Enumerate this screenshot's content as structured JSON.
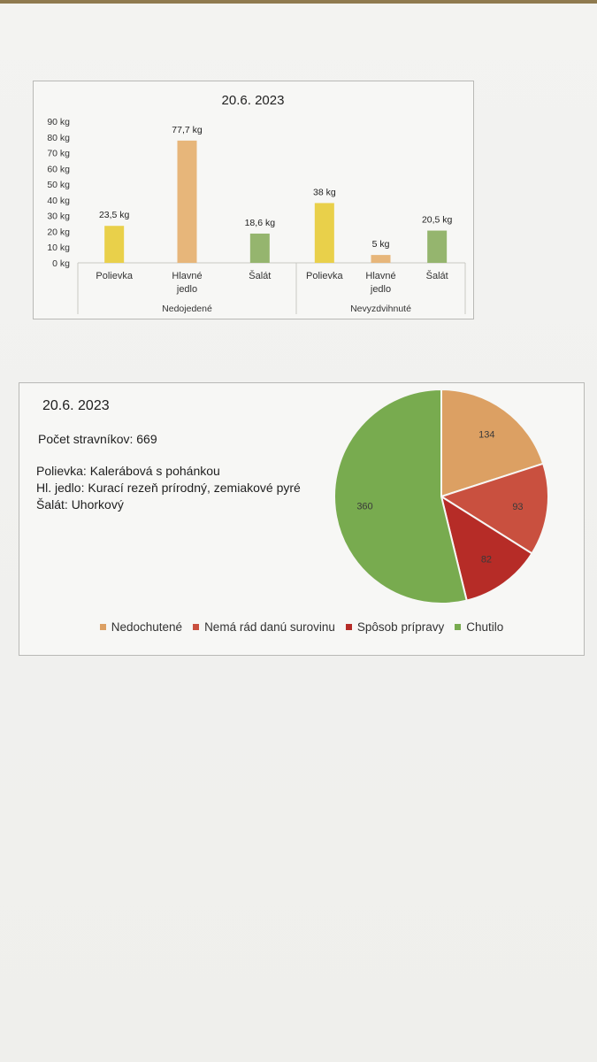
{
  "chart_data": [
    {
      "type": "bar",
      "title": "20.6. 2023",
      "ylim": [
        0,
        90
      ],
      "y_ticks": [
        "0 kg",
        "10 kg",
        "20 kg",
        "30 kg",
        "40 kg",
        "50 kg",
        "60 kg",
        "70 kg",
        "80 kg",
        "90 kg"
      ],
      "groups": [
        "Nedojedené",
        "Nevyzdvihnuté"
      ],
      "categories": [
        "Polievka",
        "Hlavné jedlo",
        "Šalát"
      ],
      "series": [
        {
          "group": "Nedojedené",
          "values": [
            23.5,
            77.7,
            18.6
          ],
          "labels": [
            "23,5 kg",
            "77,7 kg",
            "18,6 kg"
          ]
        },
        {
          "group": "Nevyzdvihnuté",
          "values": [
            38,
            5,
            20.5
          ],
          "labels": [
            "38 kg",
            "5 kg",
            "20,5 kg"
          ]
        }
      ],
      "colors": [
        "#e9d04a",
        "#e7b67a",
        "#95b56e"
      ],
      "grid": false
    },
    {
      "type": "pie",
      "title": "20.6. 2023",
      "categories": [
        "Nedochutené",
        "Nemá rád danú surovinu",
        "Spôsob prípravy",
        "Chutilo"
      ],
      "values": [
        134,
        93,
        82,
        360
      ],
      "colors": [
        "#dca063",
        "#c9503f",
        "#b62c27",
        "#78ab4f"
      ],
      "legend_position": "bottom"
    }
  ],
  "info": {
    "diners": "Počet stravníkov: 669",
    "soup": "Polievka: Kalerábová s pohánkou",
    "main": "Hl. jedlo: Kurací rezeň prírodný, zemiakové pyré",
    "salad": "Šalát: Uhorkový"
  }
}
